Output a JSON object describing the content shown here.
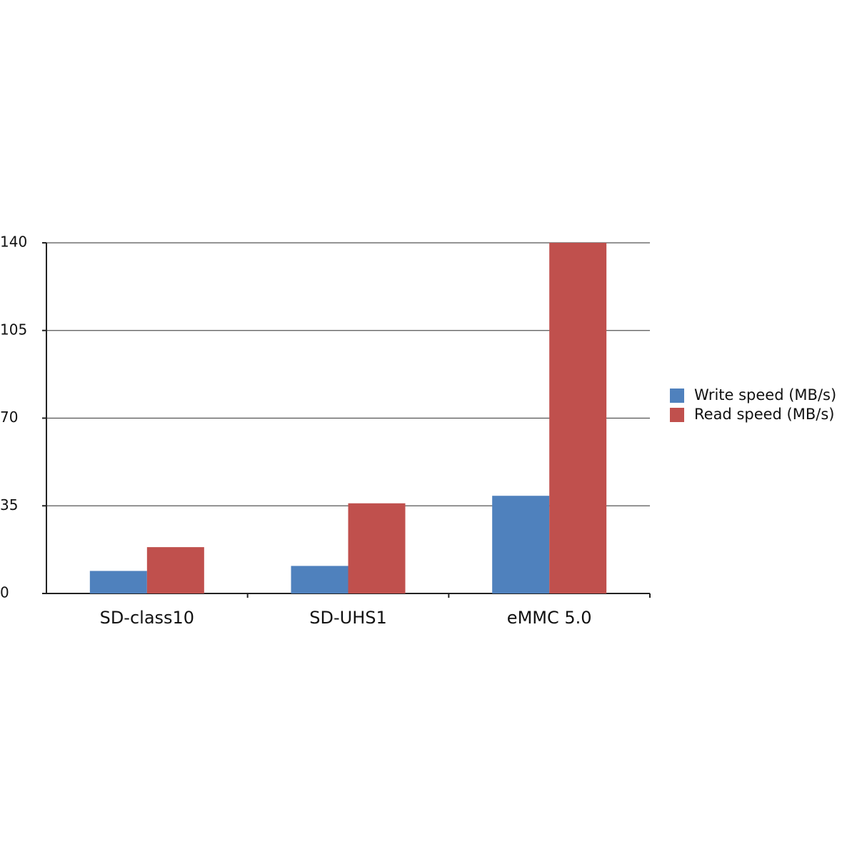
{
  "chart_data": {
    "type": "bar",
    "categories": [
      "SD-class10",
      "SD-UHS1",
      "eMMC 5.0"
    ],
    "series": [
      {
        "name": "Write speed (MB/s)",
        "color": "#4f81bd",
        "values": [
          9,
          11,
          39
        ]
      },
      {
        "name": "Read speed (MB/s)",
        "color": "#c0504d",
        "values": [
          18.5,
          36,
          140
        ]
      }
    ],
    "ylim": [
      0,
      140
    ],
    "yticks": [
      0,
      35,
      70,
      105,
      140
    ],
    "grid": true,
    "legend": "right"
  }
}
